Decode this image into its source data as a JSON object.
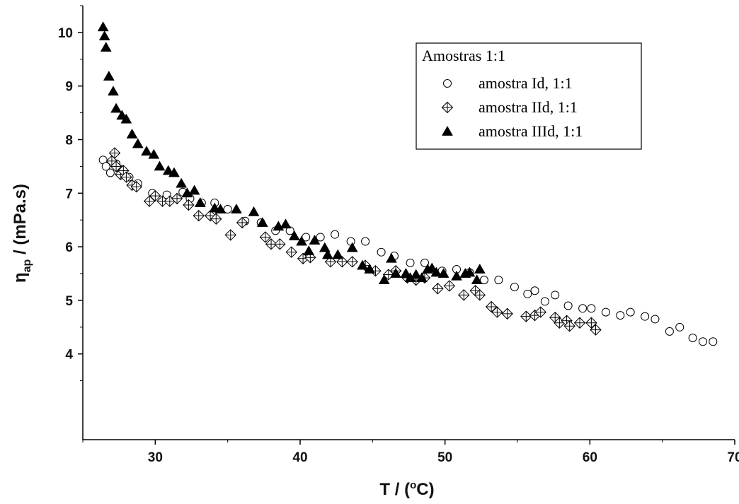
{
  "chart_data": {
    "type": "scatter",
    "xlabel": "T / (°C)",
    "xlabel_parts": {
      "prefix": "T / (",
      "sup": "o",
      "suffix": "C)"
    },
    "ylabel": "ηap / (mPa.s)",
    "ylabel_parts": {
      "symbol": "η",
      "sub": "ap",
      "suffix": " / (mPa.s)"
    },
    "xlim": [
      25,
      70
    ],
    "ylim": [
      2.4,
      10.5
    ],
    "xticks": [
      30,
      40,
      50,
      60,
      70
    ],
    "yticks": [
      4,
      5,
      6,
      7,
      8,
      9,
      10
    ],
    "xtick_labels": [
      "30",
      "40",
      "50",
      "60",
      "70"
    ],
    "ytick_labels": [
      "4",
      "5",
      "6",
      "7",
      "8",
      "9",
      "10"
    ],
    "grid": false,
    "legend": {
      "title": "Amostras 1:1",
      "placement": "top-right"
    },
    "series": [
      {
        "name": "amostra Id, 1:1",
        "marker": "open-circle",
        "color": "#000000",
        "points": [
          [
            26.4,
            7.62
          ],
          [
            26.6,
            7.5
          ],
          [
            26.9,
            7.38
          ],
          [
            27.3,
            7.55
          ],
          [
            27.6,
            7.45
          ],
          [
            28.2,
            7.3
          ],
          [
            28.8,
            7.18
          ],
          [
            29.8,
            7.0
          ],
          [
            30.8,
            6.97
          ],
          [
            31.9,
            7.02
          ],
          [
            32.4,
            6.9
          ],
          [
            33.2,
            6.82
          ],
          [
            34.1,
            6.82
          ],
          [
            35.0,
            6.7
          ],
          [
            36.2,
            6.48
          ],
          [
            37.3,
            6.45
          ],
          [
            38.3,
            6.3
          ],
          [
            39.3,
            6.3
          ],
          [
            40.4,
            6.18
          ],
          [
            41.4,
            6.18
          ],
          [
            42.4,
            6.23
          ],
          [
            43.5,
            6.1
          ],
          [
            44.5,
            6.1
          ],
          [
            45.6,
            5.9
          ],
          [
            46.5,
            5.83
          ],
          [
            47.6,
            5.7
          ],
          [
            48.6,
            5.7
          ],
          [
            49.8,
            5.55
          ],
          [
            50.8,
            5.58
          ],
          [
            51.7,
            5.52
          ],
          [
            52.7,
            5.38
          ],
          [
            53.7,
            5.38
          ],
          [
            54.8,
            5.25
          ],
          [
            55.7,
            5.12
          ],
          [
            56.2,
            5.18
          ],
          [
            56.9,
            4.98
          ],
          [
            57.6,
            5.1
          ],
          [
            58.5,
            4.9
          ],
          [
            59.5,
            4.85
          ],
          [
            60.1,
            4.85
          ],
          [
            61.1,
            4.78
          ],
          [
            62.1,
            4.72
          ],
          [
            62.8,
            4.78
          ],
          [
            63.8,
            4.7
          ],
          [
            64.5,
            4.65
          ],
          [
            65.5,
            4.42
          ],
          [
            66.2,
            4.5
          ],
          [
            67.1,
            4.3
          ],
          [
            67.8,
            4.23
          ],
          [
            68.5,
            4.23
          ]
        ]
      },
      {
        "name": "amostra IId, 1:1",
        "marker": "crossed-diamond",
        "color": "#000000",
        "points": [
          [
            27.0,
            7.6
          ],
          [
            27.2,
            7.75
          ],
          [
            27.3,
            7.5
          ],
          [
            27.6,
            7.35
          ],
          [
            27.8,
            7.42
          ],
          [
            28.0,
            7.3
          ],
          [
            28.4,
            7.15
          ],
          [
            28.7,
            7.12
          ],
          [
            29.6,
            6.85
          ],
          [
            30.0,
            6.95
          ],
          [
            30.5,
            6.85
          ],
          [
            31.0,
            6.85
          ],
          [
            31.5,
            6.9
          ],
          [
            32.3,
            6.78
          ],
          [
            33.0,
            6.58
          ],
          [
            33.8,
            6.58
          ],
          [
            34.2,
            6.52
          ],
          [
            35.2,
            6.22
          ],
          [
            36.0,
            6.45
          ],
          [
            37.6,
            6.18
          ],
          [
            38.0,
            6.05
          ],
          [
            38.6,
            6.05
          ],
          [
            39.4,
            5.9
          ],
          [
            40.2,
            5.78
          ],
          [
            40.7,
            5.8
          ],
          [
            42.1,
            5.72
          ],
          [
            42.9,
            5.72
          ],
          [
            43.6,
            5.72
          ],
          [
            44.5,
            5.65
          ],
          [
            45.2,
            5.55
          ],
          [
            46.1,
            5.48
          ],
          [
            46.6,
            5.55
          ],
          [
            47.4,
            5.42
          ],
          [
            48.0,
            5.38
          ],
          [
            48.6,
            5.42
          ],
          [
            49.5,
            5.22
          ],
          [
            50.3,
            5.27
          ],
          [
            51.3,
            5.1
          ],
          [
            52.1,
            5.18
          ],
          [
            52.4,
            5.1
          ],
          [
            53.2,
            4.88
          ],
          [
            53.6,
            4.78
          ],
          [
            54.3,
            4.75
          ],
          [
            55.6,
            4.7
          ],
          [
            56.2,
            4.72
          ],
          [
            56.6,
            4.78
          ],
          [
            57.6,
            4.68
          ],
          [
            57.9,
            4.58
          ],
          [
            58.4,
            4.62
          ],
          [
            58.6,
            4.52
          ],
          [
            59.3,
            4.58
          ],
          [
            60.1,
            4.58
          ],
          [
            60.4,
            4.45
          ]
        ]
      },
      {
        "name": "amostra IIId, 1:1",
        "marker": "filled-triangle",
        "color": "#000000",
        "points": [
          [
            26.4,
            10.1
          ],
          [
            26.5,
            9.93
          ],
          [
            26.6,
            9.72
          ],
          [
            26.8,
            9.18
          ],
          [
            27.1,
            8.9
          ],
          [
            27.3,
            8.58
          ],
          [
            27.7,
            8.45
          ],
          [
            28.0,
            8.38
          ],
          [
            28.4,
            8.1
          ],
          [
            28.8,
            7.92
          ],
          [
            29.4,
            7.78
          ],
          [
            29.9,
            7.72
          ],
          [
            30.3,
            7.5
          ],
          [
            30.9,
            7.42
          ],
          [
            31.3,
            7.38
          ],
          [
            31.8,
            7.18
          ],
          [
            32.2,
            7.0
          ],
          [
            32.7,
            7.05
          ],
          [
            33.1,
            6.82
          ],
          [
            34.1,
            6.72
          ],
          [
            34.5,
            6.7
          ],
          [
            35.6,
            6.7
          ],
          [
            36.8,
            6.65
          ],
          [
            37.4,
            6.45
          ],
          [
            38.5,
            6.38
          ],
          [
            39.0,
            6.42
          ],
          [
            39.6,
            6.2
          ],
          [
            40.1,
            6.1
          ],
          [
            40.6,
            5.92
          ],
          [
            41.0,
            6.12
          ],
          [
            41.7,
            5.98
          ],
          [
            41.9,
            5.85
          ],
          [
            42.6,
            5.85
          ],
          [
            43.6,
            5.98
          ],
          [
            44.3,
            5.65
          ],
          [
            44.8,
            5.58
          ],
          [
            45.8,
            5.38
          ],
          [
            46.3,
            5.78
          ],
          [
            46.6,
            5.5
          ],
          [
            47.3,
            5.5
          ],
          [
            47.6,
            5.42
          ],
          [
            48.0,
            5.48
          ],
          [
            48.4,
            5.42
          ],
          [
            48.8,
            5.58
          ],
          [
            49.1,
            5.6
          ],
          [
            49.4,
            5.52
          ],
          [
            49.9,
            5.5
          ],
          [
            50.8,
            5.45
          ],
          [
            51.4,
            5.5
          ],
          [
            51.7,
            5.52
          ],
          [
            52.2,
            5.38
          ],
          [
            52.4,
            5.58
          ]
        ]
      }
    ]
  }
}
